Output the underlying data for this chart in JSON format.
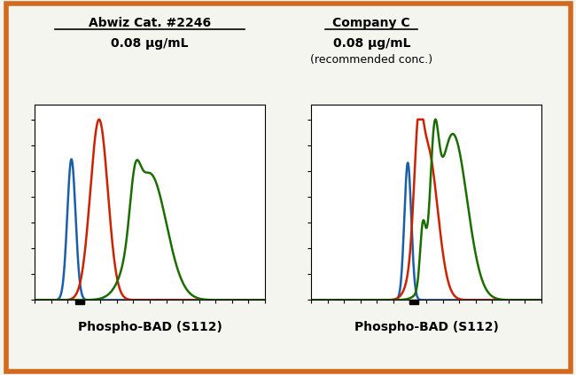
{
  "title_left_line1": "Abwiz Cat. #2246",
  "title_left_line2": "0.08 μg/mL",
  "title_right_line1": "Company C",
  "title_right_line2": "0.08 μg/mL",
  "title_right_line3": "(recommended conc.)",
  "xlabel": "Phospho-BAD (S112)",
  "outer_border_color": "#D2691E",
  "fig_bg_color": "#f5f5f0",
  "plot_bg_color": "#ffffff",
  "blue_color": "#1a5fa8",
  "red_color": "#cc2200",
  "green_color": "#1a6e00"
}
